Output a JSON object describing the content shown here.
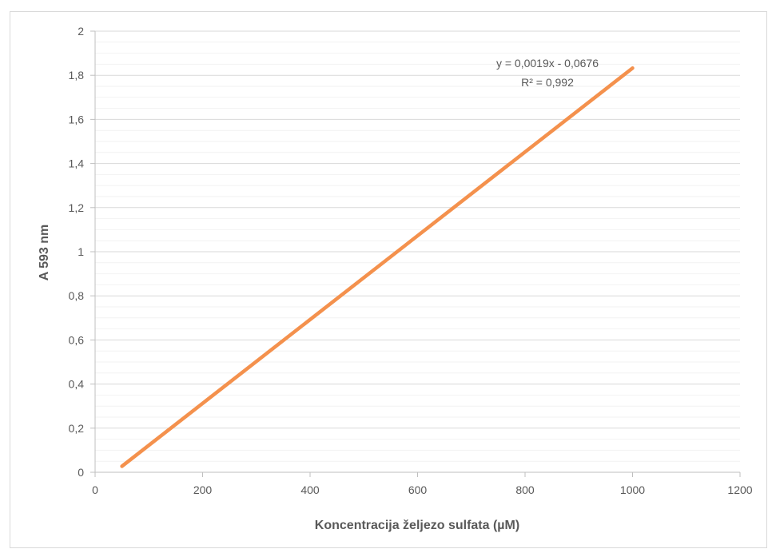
{
  "chart_data": {
    "type": "line",
    "title": "",
    "xlabel": "Koncentracija željezo sulfata (µM)",
    "ylabel": "A 593 nm",
    "xlim": [
      0,
      1200
    ],
    "ylim": [
      0,
      2
    ],
    "x_ticks": [
      "0",
      "200",
      "400",
      "600",
      "800",
      "1000",
      "1200"
    ],
    "y_ticks": [
      "0",
      "0,2",
      "0,4",
      "0,6",
      "0,8",
      "1",
      "1,2",
      "1,4",
      "1,6",
      "1,8",
      "2"
    ],
    "x_tick_values": [
      0,
      200,
      400,
      600,
      800,
      1000,
      1200
    ],
    "y_tick_values": [
      0,
      0.2,
      0.4,
      0.6,
      0.8,
      1.0,
      1.2,
      1.4,
      1.6,
      1.8,
      2.0
    ],
    "minor_gridlines": true,
    "series": [
      {
        "x": [
          50,
          1000
        ],
        "y": [
          0.0274,
          1.8324
        ],
        "color": "#f4914d"
      }
    ],
    "trendline": {
      "equation": "y = 0,0019x - 0,0676",
      "r_squared": "R² = 0,992"
    },
    "legend": "none"
  }
}
